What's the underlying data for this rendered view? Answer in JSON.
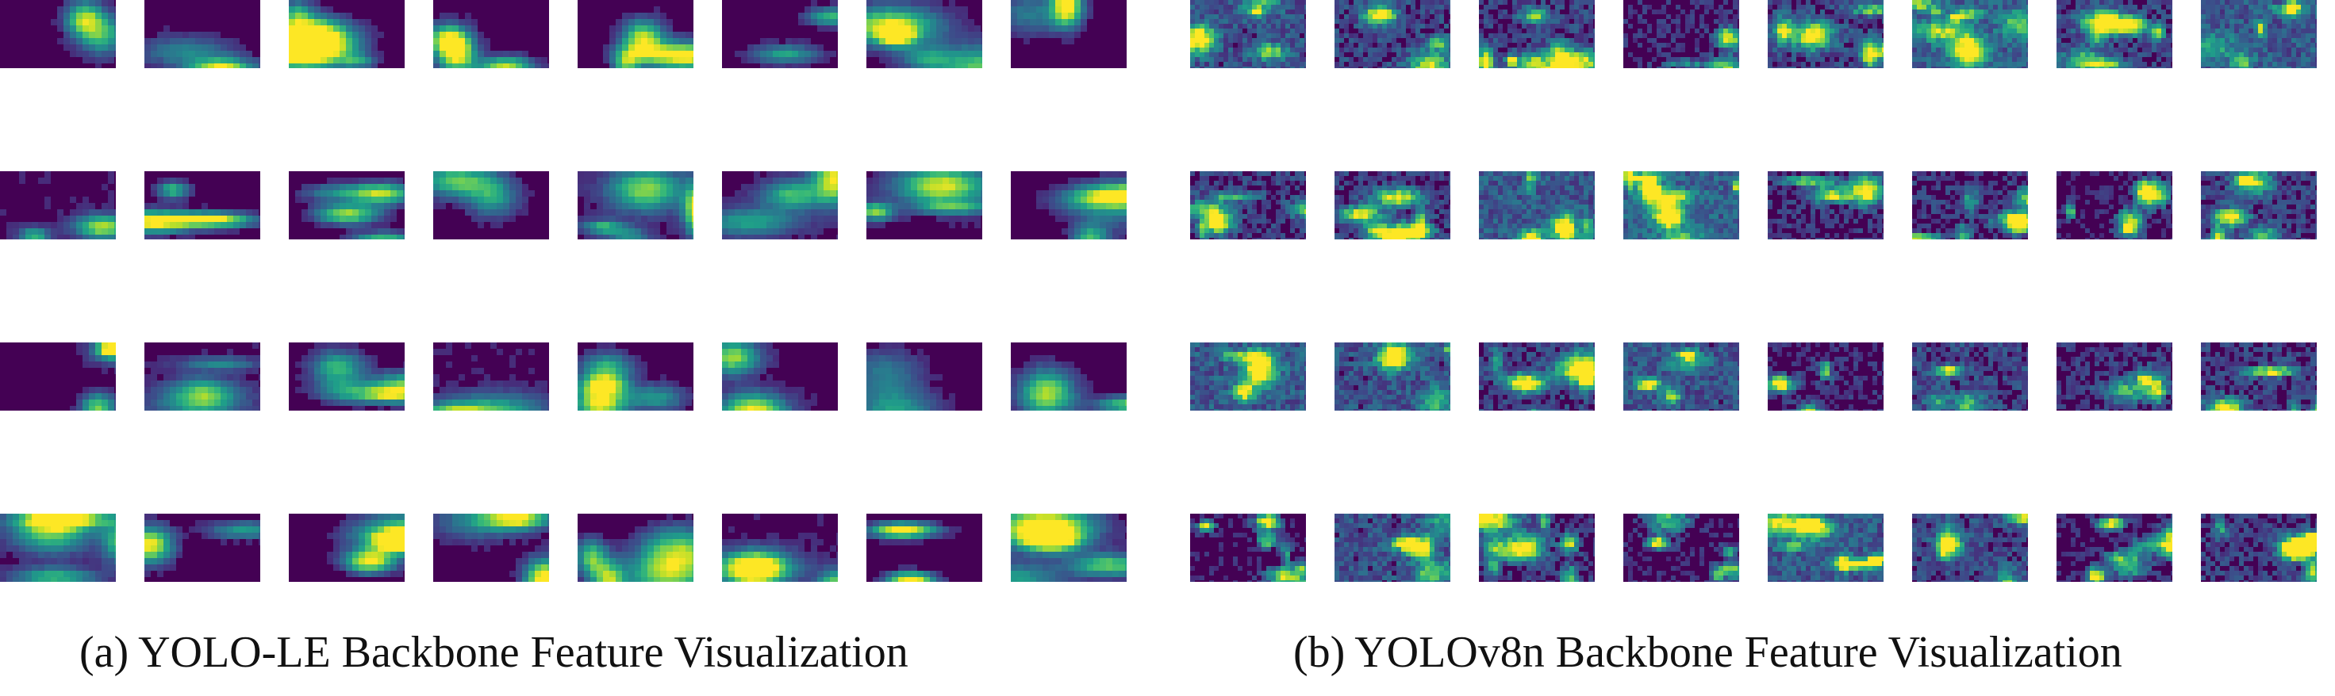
{
  "figure": {
    "panels": [
      {
        "id": "a",
        "caption": "(a) YOLO-LE Backbone Feature Visualization",
        "grid": {
          "rows": 4,
          "cols": 8
        },
        "style": "smooth",
        "seed": 17
      },
      {
        "id": "b",
        "caption": "(b) YOLOv8n Backbone Feature Visualization",
        "grid": {
          "rows": 4,
          "cols": 8
        },
        "style": "noisy",
        "seed": 91
      }
    ],
    "colormap": "viridis",
    "colormap_stops": [
      "#440154",
      "#482878",
      "#3e4989",
      "#31688e",
      "#26828e",
      "#1f9e89",
      "#35b779",
      "#6ece58",
      "#b5de2b",
      "#fde725"
    ]
  }
}
